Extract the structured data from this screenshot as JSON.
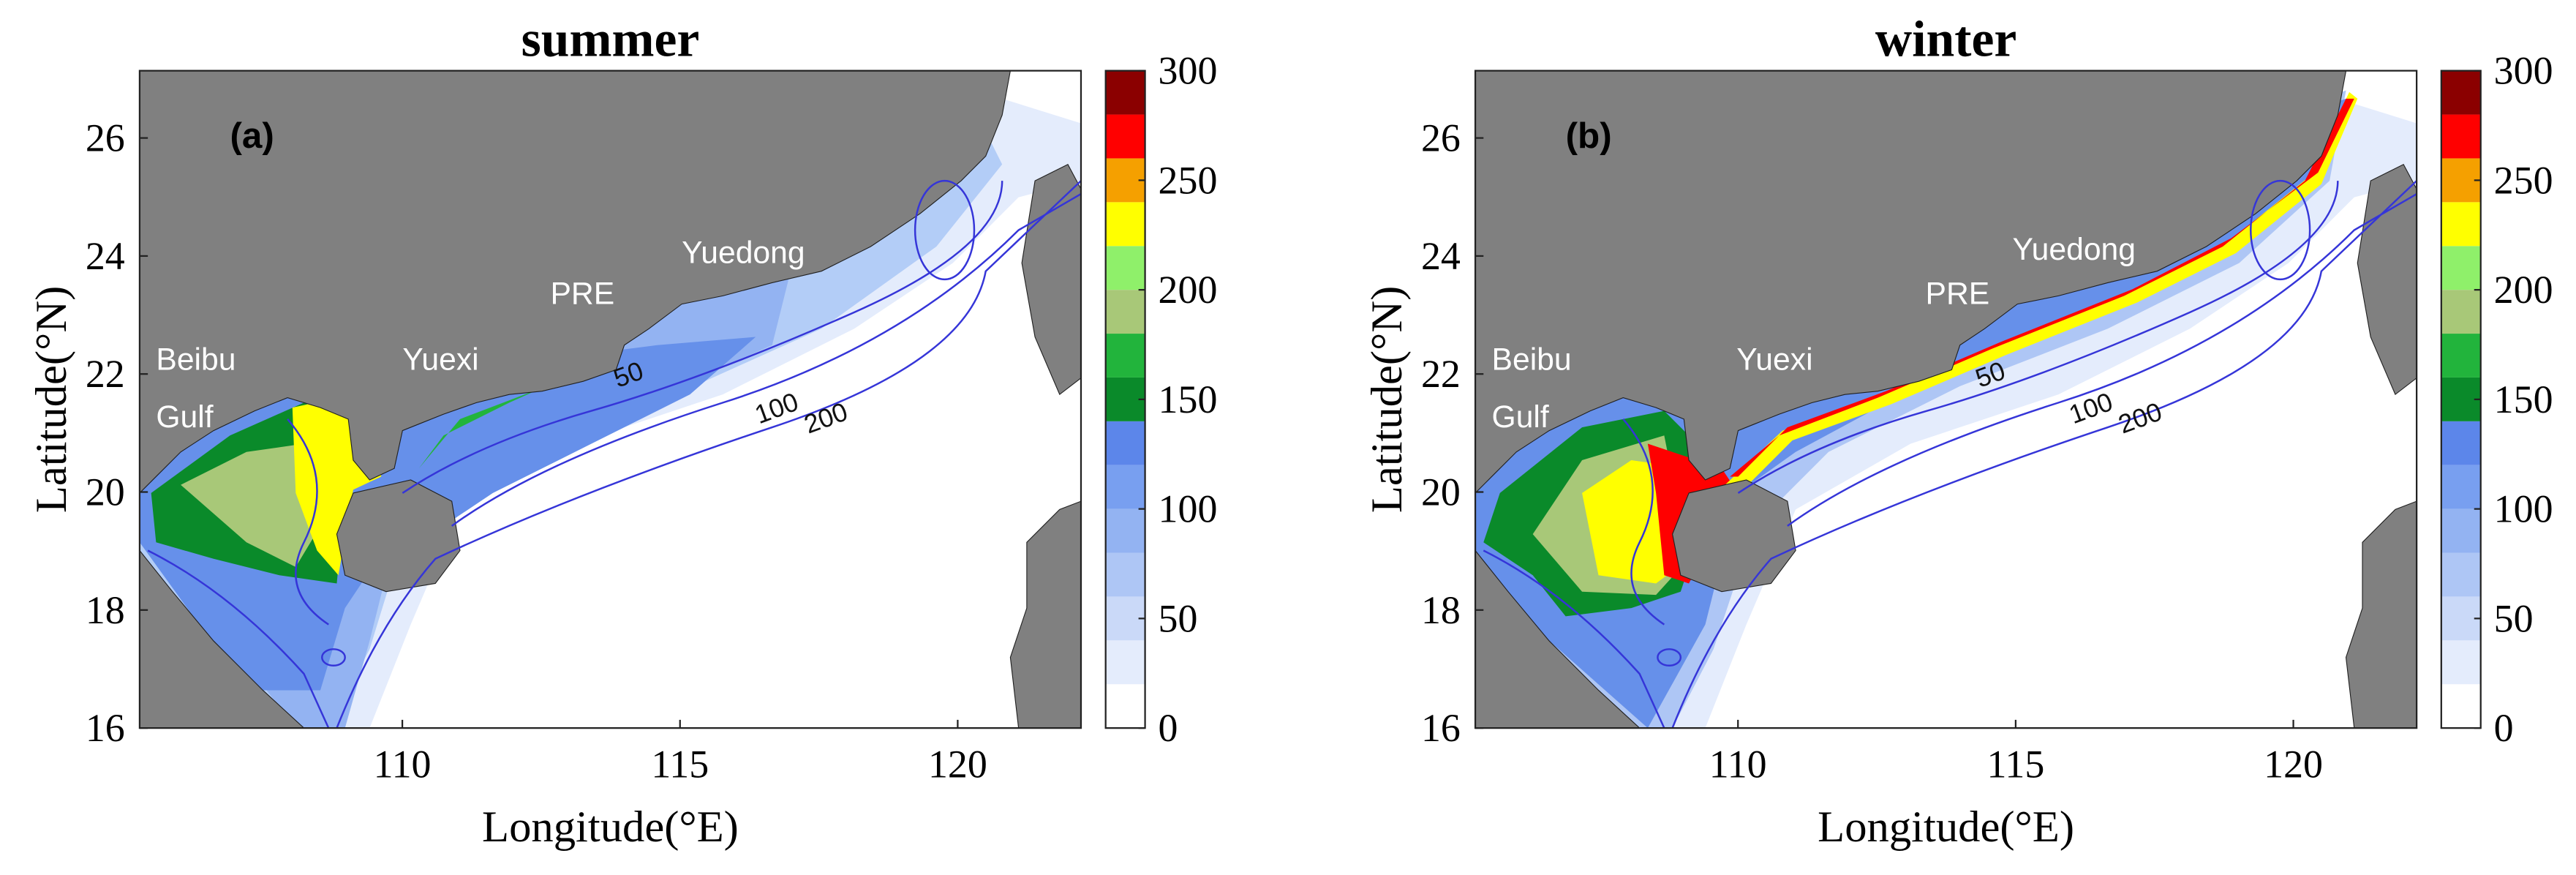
{
  "figure": {
    "panels": [
      {
        "title": "summer",
        "label": "(a)",
        "places": [
          "Beibu",
          "Gulf",
          "Yuexi",
          "PRE",
          "Yuedong"
        ],
        "contour_labels": [
          50,
          100,
          200
        ],
        "x_label": "Longitude(°E)",
        "y_label": "Latitude(°N)",
        "xlim": [
          105.27,
          122.22
        ],
        "ylim": [
          16,
          27.14
        ],
        "xticks": [
          110,
          115,
          120
        ],
        "yticks": [
          16,
          18,
          20,
          22,
          24,
          26
        ],
        "colorbar": {
          "ylim": [
            0,
            300
          ],
          "ticks": [
            0,
            50,
            100,
            150,
            200,
            250,
            300
          ],
          "levels": [
            0,
            20,
            40,
            60,
            80,
            100,
            120,
            140,
            160,
            180,
            200,
            220,
            240,
            260,
            280,
            300
          ],
          "colors": [
            "#ffffff",
            "#e4ecfc",
            "#cad9f8",
            "#aec6f5",
            "#93b3f2",
            "#789ff0",
            "#5c86ea",
            "#0a8a2a",
            "#22b43c",
            "#a8c878",
            "#8ff06a",
            "#ffff00",
            "#f5a000",
            "#ff0000",
            "#8b0000"
          ]
        }
      },
      {
        "title": "winter",
        "label": "(b)",
        "places": [
          "Beibu",
          "Gulf",
          "Yuexi",
          "PRE",
          "Yuedong"
        ],
        "contour_labels": [
          50,
          100,
          200
        ],
        "x_label": "Longitude(°E)",
        "y_label": "Latitude(°N)",
        "xlim": [
          105.27,
          122.22
        ],
        "ylim": [
          16,
          27.14
        ],
        "xticks": [
          110,
          115,
          120
        ],
        "yticks": [
          16,
          18,
          20,
          22,
          24,
          26
        ],
        "colorbar": {
          "ylim": [
            0,
            300
          ],
          "ticks": [
            0,
            50,
            100,
            150,
            200,
            250,
            300
          ],
          "levels": [
            0,
            20,
            40,
            60,
            80,
            100,
            120,
            140,
            160,
            180,
            200,
            220,
            240,
            260,
            280,
            300
          ],
          "colors": [
            "#ffffff",
            "#e4ecfc",
            "#cad9f8",
            "#aec6f5",
            "#93b3f2",
            "#789ff0",
            "#5c86ea",
            "#0a8a2a",
            "#22b43c",
            "#a8c878",
            "#8ff06a",
            "#ffff00",
            "#f5a000",
            "#ff0000",
            "#8b0000"
          ]
        }
      }
    ]
  }
}
